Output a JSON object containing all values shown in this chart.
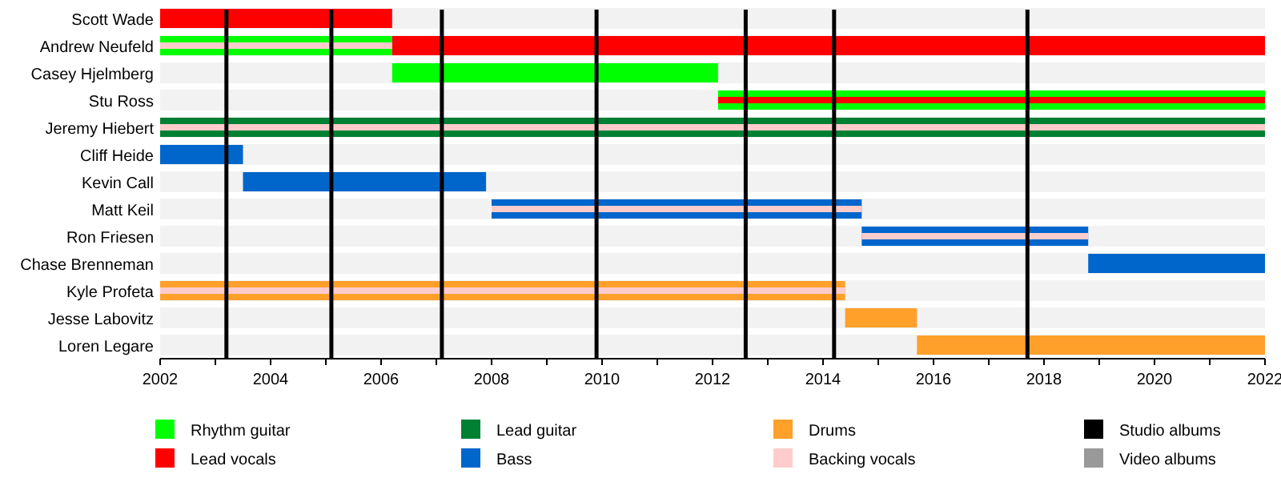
{
  "chart_data": {
    "type": "bar",
    "orientation": "horizontal",
    "legend": "bottom",
    "categories": [
      "Scott Wade",
      "Andrew Neufeld",
      "Casey Hjelmberg",
      "Stu Ross",
      "Jeremy Hiebert",
      "Cliff Heide",
      "Kevin Call",
      "Matt Keil",
      "Ron Friesen",
      "Chase Brenneman",
      "Kyle Profeta",
      "Jesse Labovitz",
      "Loren Legare"
    ],
    "xlim": [
      2002,
      2022
    ],
    "xticks": [
      2002,
      {
        "value": 2003,
        "label": null
      },
      2004,
      {
        "value": 2005,
        "label": null
      },
      2006,
      {
        "value": 2007,
        "label": null
      },
      2008,
      {
        "value": 2009,
        "label": null
      },
      2010,
      {
        "value": 2011,
        "label": null
      },
      2012,
      {
        "value": 2013,
        "label": null
      },
      2014,
      {
        "value": 2015,
        "label": null
      },
      2016,
      {
        "value": 2017,
        "label": null
      },
      2018,
      {
        "value": 2019,
        "label": null
      },
      2020,
      {
        "value": 2021,
        "label": null
      },
      2022
    ],
    "series": [
      {
        "name": "Rhythm guitar",
        "color": "#00ff00",
        "base": [
          null,
          2002,
          2006.2,
          2012.1,
          null,
          null,
          null,
          null,
          null,
          null,
          null,
          null,
          null
        ],
        "values": [
          null,
          4.2,
          5.9,
          9.9,
          null,
          null,
          null,
          null,
          null,
          null,
          null,
          null,
          null
        ]
      },
      {
        "name": "Lead vocals",
        "color": "#ff0000",
        "base": [
          2002,
          2006.2,
          null,
          2012.1,
          null,
          null,
          null,
          null,
          null,
          null,
          null,
          null,
          null
        ],
        "values": [
          4.2,
          15.8,
          null,
          9.9,
          null,
          null,
          null,
          null,
          null,
          null,
          null,
          null,
          null
        ]
      },
      {
        "name": "Lead guitar",
        "color": "#008033",
        "base": [
          null,
          null,
          null,
          null,
          2002,
          null,
          null,
          null,
          null,
          null,
          null,
          null,
          null
        ],
        "values": [
          null,
          null,
          null,
          null,
          20,
          null,
          null,
          null,
          null,
          null,
          null,
          null,
          null
        ]
      },
      {
        "name": "Bass",
        "color": "#0066cc",
        "base": [
          null,
          null,
          null,
          null,
          null,
          2002,
          2003.5,
          2008,
          2014.7,
          2018.8,
          null,
          null,
          null
        ],
        "values": [
          null,
          null,
          null,
          null,
          null,
          1.5,
          4.4,
          6.7,
          4.1,
          3.2,
          null,
          null,
          null
        ]
      },
      {
        "name": "Drums",
        "color": "#ffa02a",
        "base": [
          null,
          null,
          null,
          null,
          null,
          null,
          null,
          null,
          null,
          null,
          2002,
          2014.4,
          2015.7
        ],
        "values": [
          null,
          null,
          null,
          null,
          null,
          null,
          null,
          null,
          null,
          null,
          12.4,
          1.3,
          6.3
        ]
      },
      {
        "name": "Backing vocals",
        "color": "#ffcccc",
        "base": [
          null,
          2002,
          null,
          null,
          2002,
          null,
          null,
          2008,
          2014.7,
          null,
          2002,
          null,
          null
        ],
        "values": [
          null,
          4.2,
          null,
          null,
          20,
          null,
          null,
          6.7,
          4.1,
          null,
          12.4,
          null,
          null
        ]
      },
      {
        "name": "Video albums",
        "color": "#999999",
        "values": [
          null,
          null,
          null,
          null,
          null,
          null,
          null,
          null,
          null,
          null,
          null,
          null,
          null
        ]
      }
    ],
    "ref_lines": [
      {
        "axis": "x",
        "value": 2003.2,
        "label": "Studio albums",
        "color": "#000000"
      },
      {
        "axis": "x",
        "value": 2005.1,
        "label": null,
        "color": "#000000"
      },
      {
        "axis": "x",
        "value": 2007.1,
        "label": null,
        "color": "#000000"
      },
      {
        "axis": "x",
        "value": 2009.9,
        "label": null,
        "color": "#000000"
      },
      {
        "axis": "x",
        "value": 2012.6,
        "label": null,
        "color": "#000000"
      },
      {
        "axis": "x",
        "value": 2014.2,
        "label": null,
        "color": "#000000"
      },
      {
        "axis": "x",
        "value": 2017.7,
        "label": null,
        "color": "#000000"
      }
    ]
  }
}
